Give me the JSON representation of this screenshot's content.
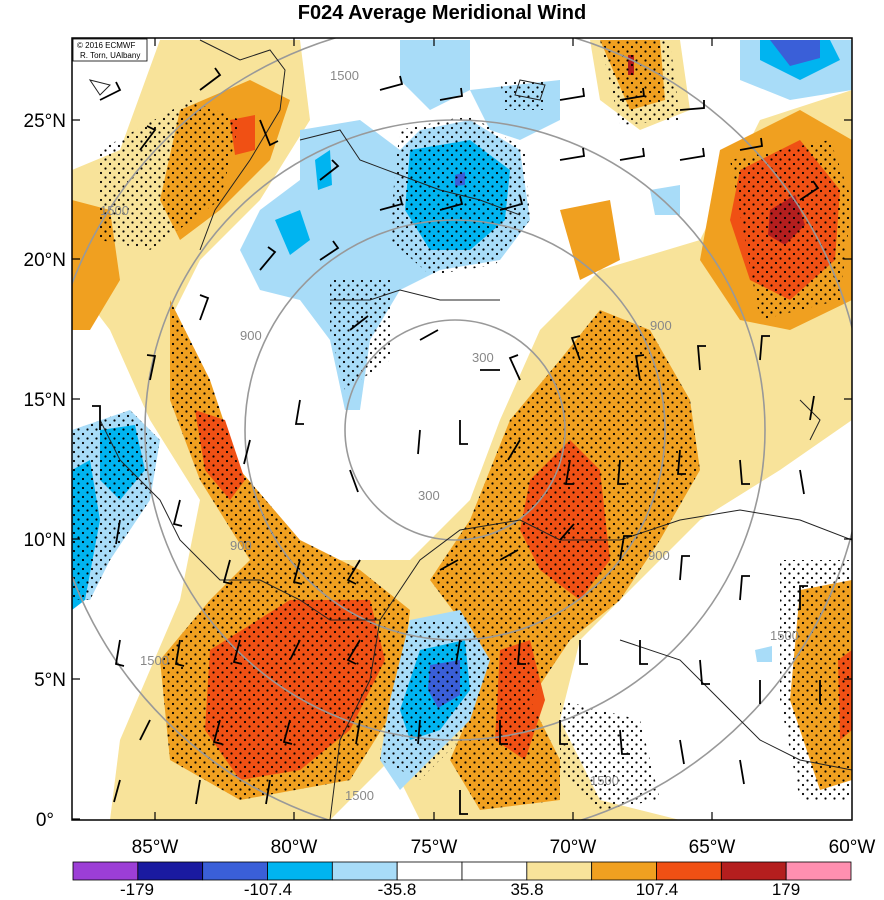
{
  "title": "F024 Average Meridional Wind",
  "credit": {
    "line1": "© 2016 ECMWF",
    "line2": "R. Torn, UAlbany"
  },
  "axes": {
    "x_ticks": [
      "85°W",
      "80°W",
      "75°W",
      "70°W",
      "65°W",
      "60°W"
    ],
    "y_ticks": [
      "25°N",
      "20°N",
      "15°N",
      "10°N",
      "5°N",
      "0°"
    ]
  },
  "range_rings": {
    "labels": [
      "300",
      "900",
      "1500"
    ]
  },
  "colorbar": {
    "labels": [
      "-179",
      "-107.4",
      "-35.8",
      "35.8",
      "107.4",
      "179"
    ],
    "colors": [
      "#9c3ed6",
      "#1a1aa0",
      "#3a5fd8",
      "#00b4f0",
      "#a8dcf8",
      "#ffffff",
      "#ffffff",
      "#f8e39a",
      "#f0a020",
      "#f05014",
      "#b41e1e",
      "#ff8fb0"
    ]
  },
  "colors": {
    "blue_light": "#a8dcf8",
    "blue_mid": "#00b4f0",
    "blue_dark": "#3a5fd8",
    "yellow": "#f8e39a",
    "orange": "#f0a020",
    "red": "#f05014",
    "dark_red": "#b41e1e"
  }
}
